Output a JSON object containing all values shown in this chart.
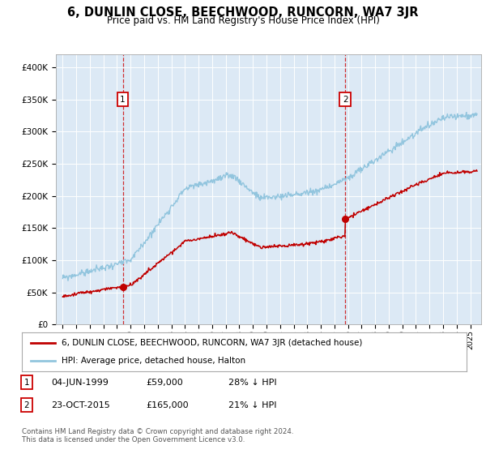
{
  "title": "6, DUNLIN CLOSE, BEECHWOOD, RUNCORN, WA7 3JR",
  "subtitle": "Price paid vs. HM Land Registry's House Price Index (HPI)",
  "background_color": "#dce9f5",
  "legend_label_red": "6, DUNLIN CLOSE, BEECHWOOD, RUNCORN, WA7 3JR (detached house)",
  "legend_label_blue": "HPI: Average price, detached house, Halton",
  "annotation1_date": "04-JUN-1999",
  "annotation1_price": "£59,000",
  "annotation1_hpi": "28% ↓ HPI",
  "annotation2_date": "23-OCT-2015",
  "annotation2_price": "£165,000",
  "annotation2_hpi": "21% ↓ HPI",
  "footnote1": "Contains HM Land Registry data © Crown copyright and database right 2024.",
  "footnote2": "This data is licensed under the Open Government Licence v3.0.",
  "sale1_year": 1999.42,
  "sale1_price": 59000,
  "sale2_year": 2015.8,
  "sale2_price": 165000,
  "ylim_min": 0,
  "ylim_max": 420000,
  "xlim_min": 1994.5,
  "xlim_max": 2025.8,
  "hpi_color": "#92c5de",
  "pp_color": "#c00000",
  "vline_color": "#cc0000",
  "box_color": "#cc0000",
  "grid_color": "white"
}
